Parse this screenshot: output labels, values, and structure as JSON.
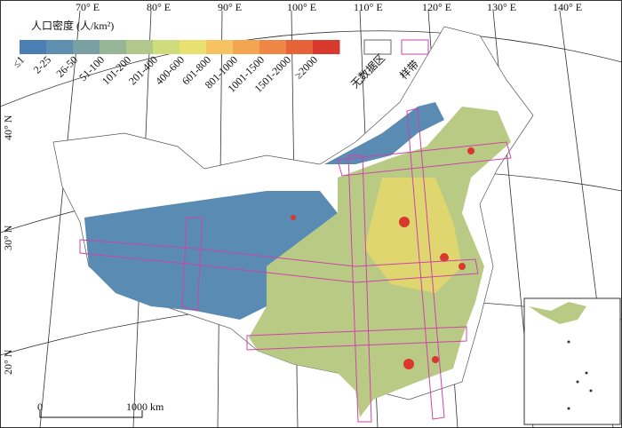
{
  "legend": {
    "title": "人口密度 (人/km²)",
    "classes": [
      {
        "label": "≤1",
        "color": "#4a7fb5"
      },
      {
        "label": "2-25",
        "color": "#5f8fae"
      },
      {
        "label": "26-50",
        "color": "#7ba0a3"
      },
      {
        "label": "51-100",
        "color": "#97b597"
      },
      {
        "label": "101-200",
        "color": "#b2c88a"
      },
      {
        "label": "201-400",
        "color": "#cfdc7c"
      },
      {
        "label": "400-600",
        "color": "#e8e070"
      },
      {
        "label": "601-800",
        "color": "#f5c460"
      },
      {
        "label": "801-1000",
        "color": "#f3a552"
      },
      {
        "label": "1001-1500",
        "color": "#ee8646"
      },
      {
        "label": "1501-2000",
        "color": "#e6633a"
      },
      {
        "label": "≥2000",
        "color": "#d8382e"
      }
    ],
    "no_data": "无数据区",
    "transect": "样带"
  },
  "graticule": {
    "longitudes": [
      "70° E",
      "80° E",
      "90° E",
      "100° E",
      "110° E",
      "120° E",
      "130° E",
      "140° E"
    ],
    "latitudes": [
      "40° N",
      "30° N",
      "20° N"
    ]
  },
  "scale_bar": {
    "zero": "0",
    "distance": "1000 km"
  }
}
